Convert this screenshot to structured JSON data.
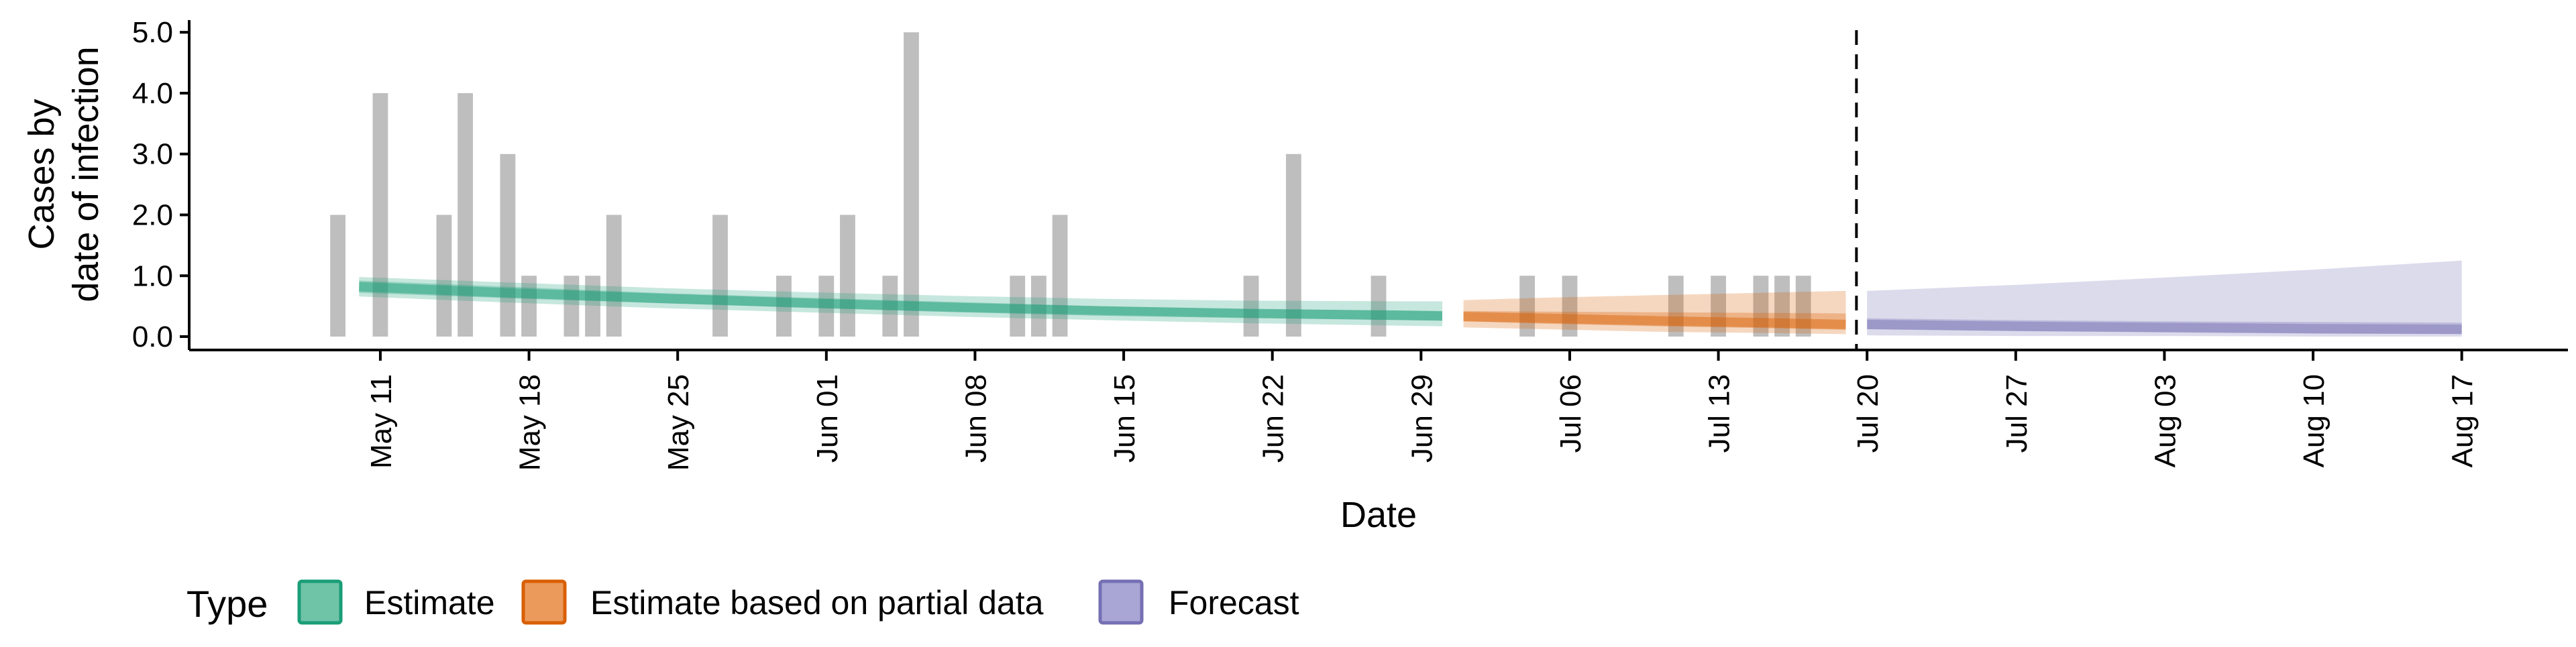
{
  "chart_data": {
    "type": "bar",
    "title": "",
    "xlabel": "Date",
    "ylabel": "Cases by date of infection",
    "ylabel_lines": [
      "Cases by",
      "date of infection"
    ],
    "ylim": [
      0,
      5
    ],
    "y_ticks": [
      0,
      1,
      2,
      3,
      4,
      5
    ],
    "y_tick_labels": [
      "0.0",
      "1.0",
      "2.0",
      "3.0",
      "4.0",
      "5.0"
    ],
    "xlim": [
      "2020-05-02",
      "2020-08-22"
    ],
    "x_ticks": [
      "2020-05-11",
      "2020-05-18",
      "2020-05-25",
      "2020-06-01",
      "2020-06-08",
      "2020-06-15",
      "2020-06-22",
      "2020-06-29",
      "2020-07-06",
      "2020-07-13",
      "2020-07-20",
      "2020-07-27",
      "2020-08-03",
      "2020-08-10",
      "2020-08-17"
    ],
    "x_tick_labels": [
      "May 11",
      "May 18",
      "May 25",
      "Jun 01",
      "Jun 08",
      "Jun 15",
      "Jun 22",
      "Jun 29",
      "Jul 06",
      "Jul 13",
      "Jul 20",
      "Jul 27",
      "Aug 03",
      "Aug 10",
      "Aug 17"
    ],
    "bars": {
      "color": "#bebebe",
      "x": [
        "2020-05-09",
        "2020-05-11",
        "2020-05-14",
        "2020-05-15",
        "2020-05-17",
        "2020-05-18",
        "2020-05-20",
        "2020-05-21",
        "2020-05-22",
        "2020-05-27",
        "2020-05-30",
        "2020-06-01",
        "2020-06-02",
        "2020-06-04",
        "2020-06-05",
        "2020-06-10",
        "2020-06-11",
        "2020-06-12",
        "2020-06-21",
        "2020-06-23",
        "2020-06-27",
        "2020-07-04",
        "2020-07-06",
        "2020-07-11",
        "2020-07-13",
        "2020-07-15",
        "2020-07-16",
        "2020-07-17"
      ],
      "values": [
        2,
        4,
        2,
        4,
        3,
        1,
        1,
        1,
        2,
        2,
        1,
        1,
        2,
        1,
        5,
        1,
        1,
        2,
        1,
        3,
        1,
        1,
        1,
        1,
        1,
        1,
        1,
        1
      ]
    },
    "cutoff_date": "2020-07-19",
    "series": [
      {
        "name": "Estimate",
        "color": "#1b9e77",
        "x": [
          "2020-05-10",
          "2020-05-17",
          "2020-05-24",
          "2020-05-31",
          "2020-06-07",
          "2020-06-14",
          "2020-06-21",
          "2020-06-28",
          "2020-06-30"
        ],
        "median": [
          0.82,
          0.72,
          0.63,
          0.55,
          0.48,
          0.42,
          0.38,
          0.35,
          0.34
        ],
        "inner_lower": [
          0.72,
          0.63,
          0.55,
          0.48,
          0.41,
          0.36,
          0.31,
          0.27,
          0.26
        ],
        "inner_upper": [
          0.92,
          0.82,
          0.72,
          0.64,
          0.57,
          0.5,
          0.45,
          0.43,
          0.42
        ],
        "outer_lower": [
          0.66,
          0.56,
          0.47,
          0.4,
          0.33,
          0.27,
          0.22,
          0.18,
          0.17
        ],
        "outer_upper": [
          0.98,
          0.89,
          0.8,
          0.73,
          0.67,
          0.62,
          0.59,
          0.58,
          0.58
        ]
      },
      {
        "name": "Estimate based on partial data",
        "color": "#d95f02",
        "x": [
          "2020-07-01",
          "2020-07-05",
          "2020-07-10",
          "2020-07-15",
          "2020-07-19"
        ],
        "median": [
          0.33,
          0.3,
          0.26,
          0.23,
          0.2
        ],
        "inner_lower": [
          0.25,
          0.21,
          0.17,
          0.14,
          0.11
        ],
        "inner_upper": [
          0.42,
          0.41,
          0.4,
          0.39,
          0.38
        ],
        "outer_lower": [
          0.15,
          0.12,
          0.08,
          0.06,
          0.04
        ],
        "outer_upper": [
          0.6,
          0.64,
          0.68,
          0.72,
          0.75
        ]
      },
      {
        "name": "Forecast",
        "color": "#7570b3",
        "x": [
          "2020-07-20",
          "2020-07-27",
          "2020-08-03",
          "2020-08-10",
          "2020-08-17"
        ],
        "median": [
          0.2,
          0.17,
          0.15,
          0.13,
          0.12
        ],
        "inner_lower": [
          0.12,
          0.09,
          0.07,
          0.05,
          0.04
        ],
        "inner_upper": [
          0.3,
          0.27,
          0.25,
          0.24,
          0.23
        ],
        "outer_lower": [
          0.02,
          0.01,
          0.01,
          0.0,
          0.0
        ],
        "outer_upper": [
          0.75,
          0.85,
          0.97,
          1.1,
          1.25
        ]
      }
    ],
    "legend": {
      "title": "Type",
      "position": "bottom",
      "items": [
        {
          "label": "Estimate",
          "fill": "#6fc3a7",
          "border": "#1b9e77"
        },
        {
          "label": "Estimate based on partial data",
          "fill": "#eb9a5c",
          "border": "#d95f02"
        },
        {
          "label": "Forecast",
          "fill": "#a9a5d5",
          "border": "#7570b3"
        }
      ]
    },
    "grid": false
  }
}
